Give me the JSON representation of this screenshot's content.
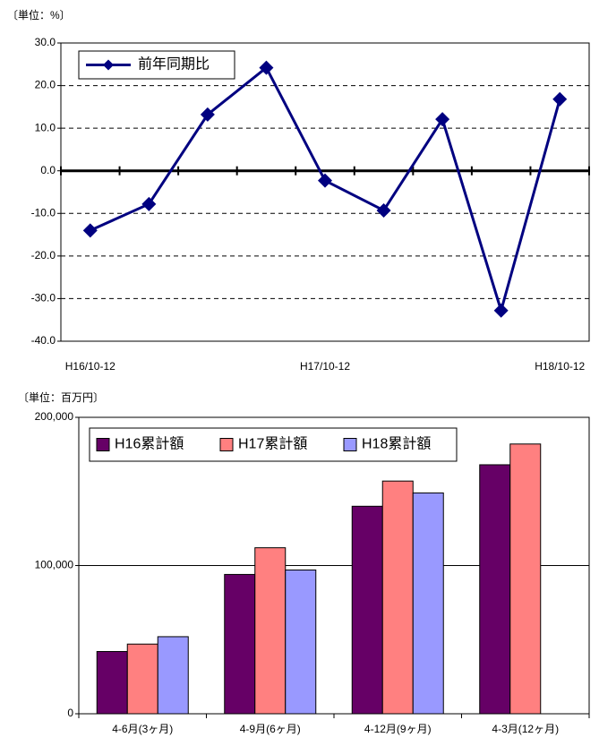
{
  "chart_data": [
    {
      "type": "line",
      "ylabel": "〔単位：%〕",
      "categories": [
        "H16/10-12",
        null,
        null,
        null,
        "H17/10-12",
        null,
        null,
        null,
        "H18/10-12"
      ],
      "series": [
        {
          "name": "前年同期比",
          "color": "#000080",
          "values": [
            -14.0,
            -7.8,
            13.2,
            24.2,
            -2.3,
            -9.3,
            12.1,
            -32.8,
            16.8
          ]
        }
      ],
      "ylim": [
        -40,
        30
      ],
      "yticks": [
        {
          "value": -40,
          "label": "-40.0"
        },
        {
          "value": -30,
          "label": "-30.0"
        },
        {
          "value": -20,
          "label": "-20.0"
        },
        {
          "value": -10,
          "label": "-10.0"
        },
        {
          "value": 0,
          "label": "0.0"
        },
        {
          "value": 10,
          "label": "10.0"
        },
        {
          "value": 20,
          "label": "20.0"
        },
        {
          "value": 30,
          "label": "30.0"
        }
      ],
      "grid": true,
      "legend": "top-left"
    },
    {
      "type": "bar",
      "ylabel": "〔単位：百万円〕",
      "categories": [
        "4-6月(3ヶ月)",
        "4-9月(6ヶ月)",
        "4-12月(9ヶ月)",
        "4-3月(12ヶ月)"
      ],
      "series": [
        {
          "name": "H16累計額",
          "color": "#660066",
          "values": [
            42000,
            94000,
            140000,
            168000
          ]
        },
        {
          "name": "H17累計額",
          "color": "#ff8080",
          "values": [
            47000,
            112000,
            157000,
            182000
          ]
        },
        {
          "name": "H18累計額",
          "color": "#9999ff",
          "values": [
            52000,
            97000,
            149000,
            null
          ]
        }
      ],
      "ylim": [
        0,
        200000
      ],
      "yticks": [
        0,
        {
          "value": 100000,
          "label": "100,000"
        },
        {
          "value": 200000,
          "label": "200,000"
        }
      ],
      "grid": true,
      "legend": "top-left"
    }
  ]
}
